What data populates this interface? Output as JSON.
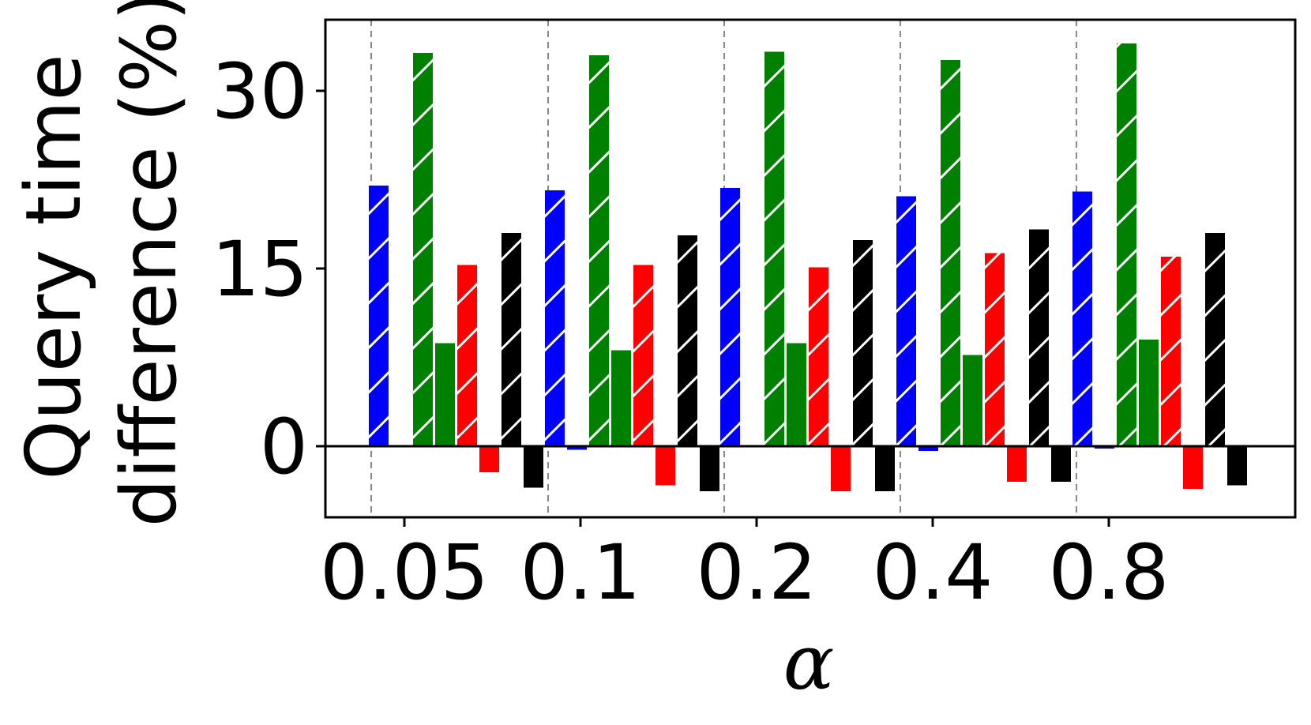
{
  "chart_data": {
    "type": "bar",
    "title": "",
    "xlabel": "α",
    "ylabel": [
      "Query time",
      "difference (%)"
    ],
    "categories": [
      "0.05",
      "0.1",
      "0.2",
      "0.4",
      "0.8"
    ],
    "y_ticks": [
      "0",
      "15",
      "30"
    ],
    "y_tick_values": [
      0,
      15,
      30
    ],
    "ylim": [
      -6,
      36
    ],
    "grid": "vertical dashed separators between groups",
    "legend": "none",
    "zero_line": true,
    "series": [
      {
        "color": "#0000ff",
        "hatched": true,
        "values": [
          22.0,
          21.6,
          21.8,
          21.1,
          21.5
        ]
      },
      {
        "color": "#0000ff",
        "hatched": false,
        "values": [
          0.0,
          -0.3,
          0.0,
          -0.4,
          -0.2
        ]
      },
      {
        "color": "#008000",
        "hatched": true,
        "values": [
          33.2,
          33.0,
          33.3,
          32.6,
          34.0
        ]
      },
      {
        "color": "#008000",
        "hatched": false,
        "values": [
          8.7,
          8.1,
          8.7,
          7.7,
          9.0
        ]
      },
      {
        "color": "#ff0000",
        "hatched": true,
        "values": [
          15.3,
          15.3,
          15.1,
          16.3,
          16.0
        ]
      },
      {
        "color": "#ff0000",
        "hatched": false,
        "values": [
          -2.2,
          -3.3,
          -3.8,
          -3.0,
          -3.6
        ]
      },
      {
        "color": "#000000",
        "hatched": true,
        "values": [
          18.0,
          17.8,
          17.4,
          18.3,
          18.0
        ]
      },
      {
        "color": "#000000",
        "hatched": false,
        "values": [
          -3.5,
          -3.8,
          -3.8,
          -3.0,
          -3.3
        ]
      }
    ]
  }
}
